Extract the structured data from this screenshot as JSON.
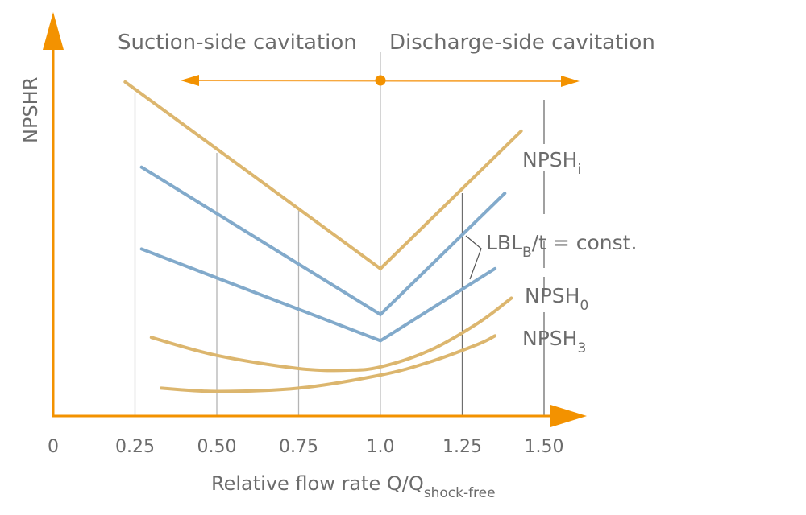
{
  "chart_data": {
    "type": "line",
    "title": "",
    "xlabel": "Relative flow rate Q/Q",
    "xlabel_subscript": "shock-free",
    "ylabel": "NPSHR",
    "xlim": [
      0,
      1.6
    ],
    "ylim": [
      0,
      100
    ],
    "x_ticks": [
      {
        "value": 0,
        "label": "0"
      },
      {
        "value": 0.25,
        "label": "0.25"
      },
      {
        "value": 0.5,
        "label": "0.50"
      },
      {
        "value": 0.75,
        "label": "0.75"
      },
      {
        "value": 1.0,
        "label": "1.0"
      },
      {
        "value": 1.25,
        "label": "1.25"
      },
      {
        "value": 1.5,
        "label": "1.50"
      }
    ],
    "y_ticks": [],
    "grid": "vertical lines at x ticks",
    "colors": {
      "axis": "#f39200",
      "npsh_curves": "#dcb66e",
      "lbl_curves": "#82aacb",
      "text": "#6b6b6b",
      "grid": "#b4b4b4"
    },
    "regions": {
      "left_label": "Suction-side cavitation",
      "right_label": "Discharge-side cavitation",
      "divider_x": 1.0
    },
    "series": [
      {
        "name": "NPSH",
        "subscript": "i",
        "color_key": "npsh_curves",
        "points": [
          [
            0.22,
            102
          ],
          [
            1.0,
            45
          ],
          [
            1.43,
            87
          ]
        ]
      },
      {
        "name": "LBL_B/t = const. (upper)",
        "color_key": "lbl_curves",
        "points": [
          [
            0.27,
            76
          ],
          [
            1.0,
            31
          ],
          [
            1.38,
            68
          ]
        ]
      },
      {
        "name": "LBL_B/t = const. (lower)",
        "color_key": "lbl_curves",
        "points": [
          [
            0.27,
            51
          ],
          [
            1.0,
            23
          ],
          [
            1.35,
            45
          ]
        ]
      },
      {
        "name": "NPSH",
        "subscript": "0",
        "color_key": "npsh_curves",
        "points": [
          [
            0.3,
            24
          ],
          [
            0.5,
            18.5
          ],
          [
            0.75,
            14.5
          ],
          [
            0.9,
            14
          ],
          [
            1.0,
            15
          ],
          [
            1.15,
            20
          ],
          [
            1.3,
            28.5
          ],
          [
            1.4,
            36
          ]
        ]
      },
      {
        "name": "NPSH",
        "subscript": "3",
        "color_key": "npsh_curves",
        "points": [
          [
            0.33,
            8.5
          ],
          [
            0.5,
            7.5
          ],
          [
            0.75,
            8.5
          ],
          [
            1.0,
            12.5
          ],
          [
            1.15,
            16.5
          ],
          [
            1.3,
            22
          ],
          [
            1.35,
            24.5
          ]
        ]
      }
    ],
    "annotations": [
      {
        "text": "NPSH",
        "sub": "i",
        "series_index": 0
      },
      {
        "text": "LBL",
        "sub": "B",
        "suffix": "/t = const.",
        "series_index": [
          1,
          2
        ],
        "x": 1.25
      },
      {
        "text": "NPSH",
        "sub": "0",
        "series_index": 3
      },
      {
        "text": "NPSH",
        "sub": "3",
        "series_index": 4
      }
    ]
  }
}
